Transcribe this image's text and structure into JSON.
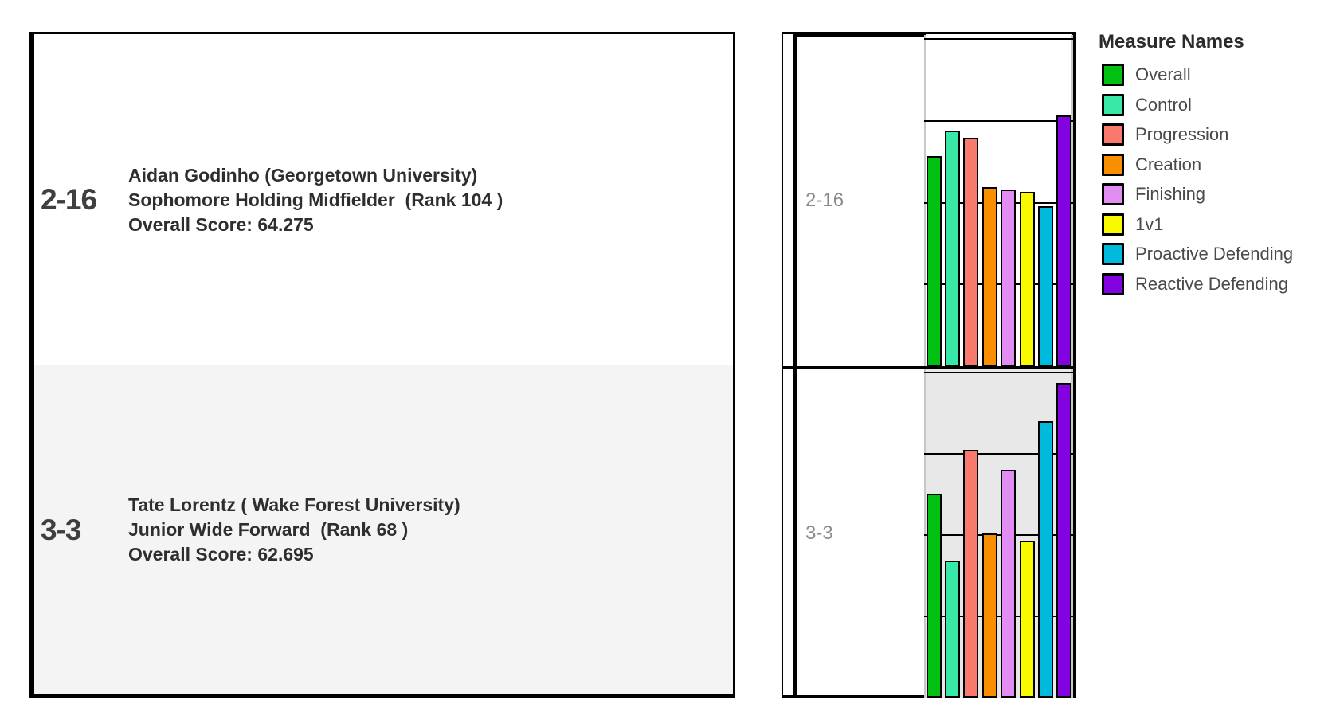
{
  "table": {
    "rows": [
      {
        "id": "2-16",
        "lines": [
          "Aidan Godinho (Georgetown University)",
          "Sophomore Holding Midfielder  (Rank 104 )",
          "Overall Score: 64.275"
        ]
      },
      {
        "id": "3-3",
        "lines": [
          "Tate Lorentz ( Wake Forest University)",
          "Junior Wide Forward  (Rank 68 )",
          "Overall Score: 62.695"
        ]
      }
    ]
  },
  "chart_data": {
    "type": "bar",
    "orientation": "vertical",
    "title": "",
    "xlabel": "",
    "ylabel": "",
    "ylim": [
      0,
      101.3
    ],
    "gridlines": [
      25,
      50,
      75,
      100
    ],
    "grid_on": true,
    "grid_color": "#000000",
    "axis_line_color": "#c8c8c8",
    "bar_outline_color": "#000000",
    "row2_background": "#e8e8e8",
    "series": [
      {
        "name": "Overall",
        "color": "#00c112"
      },
      {
        "name": "Control",
        "color": "#38e8a6"
      },
      {
        "name": "Progression",
        "color": "#fa796d"
      },
      {
        "name": "Creation",
        "color": "#f98e00"
      },
      {
        "name": "Finishing",
        "color": "#e18df3"
      },
      {
        "name": "1v1",
        "color": "#f9f900"
      },
      {
        "name": "Proactive Defending",
        "color": "#00badd"
      },
      {
        "name": "Reactive Defending",
        "color": "#8203e0"
      }
    ],
    "rows": [
      {
        "label": "2-16",
        "background": "#ffffff",
        "values": [
          64.275,
          72.0,
          69.9,
          54.8,
          54.0,
          53.3,
          48.9,
          76.7
        ]
      },
      {
        "label": "3-3",
        "background": "#e8e8e8",
        "values": [
          62.695,
          42.3,
          76.3,
          50.6,
          70.2,
          48.2,
          85.1,
          96.8
        ]
      }
    ],
    "legend": {
      "title": "Measure Names",
      "position": "right"
    }
  }
}
